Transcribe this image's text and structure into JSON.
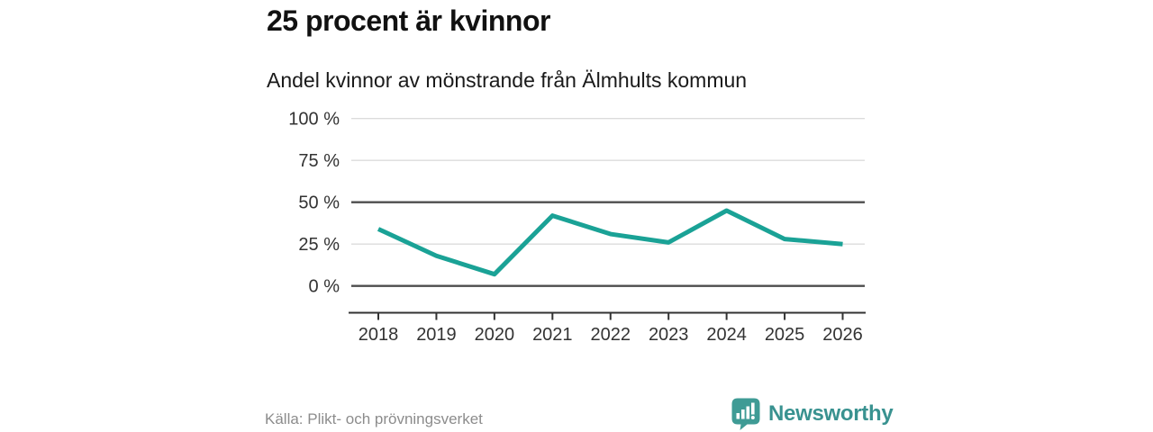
{
  "header": {
    "title": "25 procent är kvinnor",
    "subtitle": "Andel kvinnor av mönstrande från Älmhults kommun"
  },
  "chart_data": {
    "type": "line",
    "title": "25 procent är kvinnor",
    "subtitle": "Andel kvinnor av mönstrande från Älmhults kommun",
    "series_name": "Andel kvinnor av mönstrande",
    "unit": "%",
    "x": [
      2018,
      2019,
      2020,
      2021,
      2022,
      2023,
      2024,
      2025,
      2026
    ],
    "values": [
      34,
      18,
      7,
      42,
      31,
      26,
      45,
      28,
      25
    ],
    "xlabel": "",
    "ylabel": "",
    "ylim": [
      0,
      100
    ],
    "yticks": [
      0,
      25,
      50,
      75,
      100
    ],
    "ytick_labels": [
      "0 %",
      "25 %",
      "50 %",
      "75 %",
      "100 %"
    ],
    "emphasized_gridlines": [
      0,
      50
    ],
    "grid": true,
    "legend": "none",
    "line_color": "#1aa296"
  },
  "footer": {
    "source": "Källa: Plikt- och prövningsverket",
    "brand": "Newsworthy"
  },
  "colors": {
    "accent": "#1aa296",
    "brand": "#399290",
    "grid_light": "#dcdcdc",
    "grid_dark": "#4d4d4d",
    "axis": "#333333",
    "tick_label": "#333333",
    "title_text": "#111111",
    "source_text": "#8c8c8c"
  }
}
